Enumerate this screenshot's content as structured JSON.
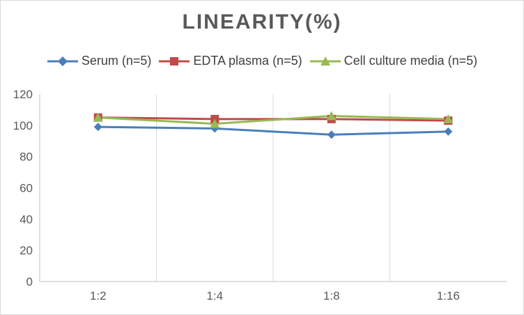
{
  "chart_data": {
    "type": "line",
    "title": "LINEARITY(%)",
    "categories": [
      "1:2",
      "1:4",
      "1:8",
      "1:16"
    ],
    "ylim": [
      0,
      120
    ],
    "yticks": [
      0,
      20,
      40,
      60,
      80,
      100,
      120
    ],
    "grid": "vertical",
    "legend_position": "top",
    "series": [
      {
        "name": "Serum (n=5)",
        "values": [
          99,
          98,
          94,
          96
        ],
        "color": "#4a7ebb",
        "marker": "diamond"
      },
      {
        "name": "EDTA plasma (n=5)",
        "values": [
          105,
          104,
          104,
          103
        ],
        "color": "#be4b48",
        "marker": "square"
      },
      {
        "name": "Cell culture media (n=5)",
        "values": [
          105,
          101,
          106,
          104
        ],
        "color": "#98b954",
        "marker": "triangle"
      }
    ]
  }
}
